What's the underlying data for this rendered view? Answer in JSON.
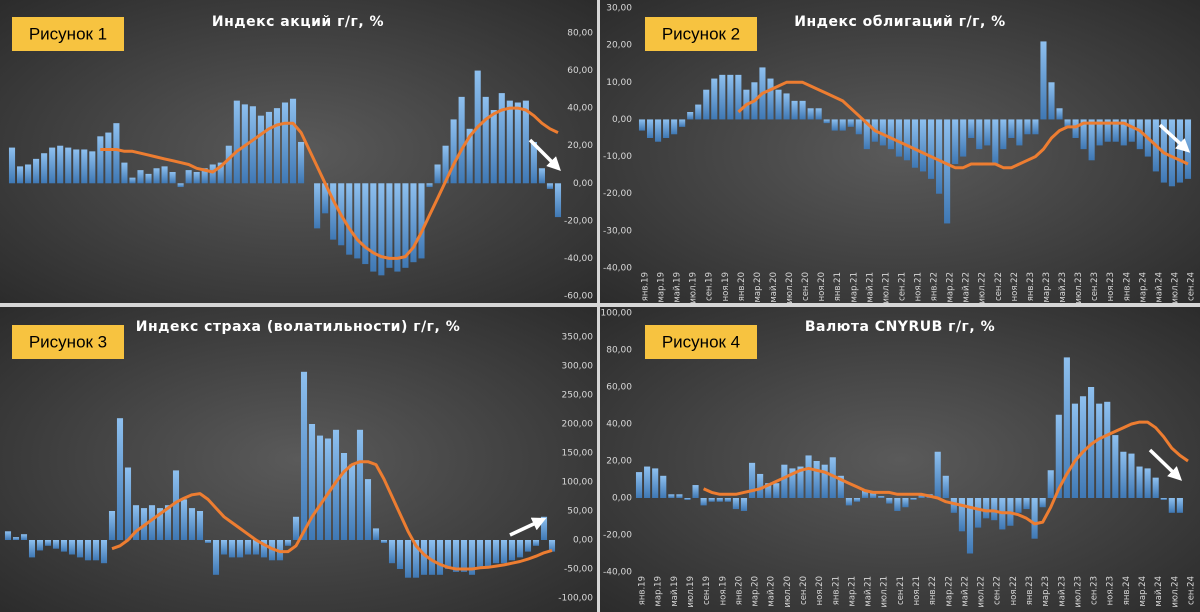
{
  "chart_data": [
    {
      "type": "bar",
      "label": "Рисунок 1",
      "title": "Индекс акций г/г, %",
      "ylim": [
        -60,
        80
      ],
      "yticks": [
        {
          "value": 80,
          "label": "80,00"
        },
        {
          "value": 60,
          "label": "60,00"
        },
        {
          "value": 40,
          "label": "40,00"
        },
        {
          "value": 20,
          "label": "20,00"
        },
        {
          "value": 0,
          "label": "0,00"
        },
        {
          "value": -20,
          "label": "-20,00"
        },
        {
          "value": -40,
          "label": "-40,00"
        },
        {
          "value": -60,
          "label": "-60,00"
        }
      ],
      "grid": false,
      "series": [
        {
          "type": "bar",
          "color": "#5b9bd5",
          "values": [
            19,
            9,
            10,
            13,
            16,
            19,
            20,
            19,
            18,
            18,
            17,
            25,
            27,
            32,
            11,
            3,
            7,
            5,
            8,
            9,
            6,
            -2,
            7,
            6,
            8,
            10,
            11,
            20,
            44,
            42,
            41,
            36,
            38,
            40,
            43,
            45,
            22,
            0,
            -24,
            -16,
            -30,
            -33,
            -38,
            -40,
            -43,
            -47,
            -49,
            -45,
            -47,
            -45,
            -42,
            -40,
            -2,
            10,
            20,
            34,
            46,
            29,
            60,
            46,
            39,
            48,
            44,
            43,
            44,
            22,
            8,
            -3,
            -18
          ]
        },
        {
          "type": "line",
          "color": "#ed7d31",
          "values": [
            null,
            null,
            null,
            null,
            null,
            null,
            null,
            null,
            null,
            null,
            null,
            18,
            18,
            18,
            17,
            17,
            16,
            15,
            14,
            13,
            12,
            11,
            10,
            8,
            7,
            6,
            9,
            13,
            17,
            20,
            23,
            26,
            29,
            31,
            32,
            32,
            27,
            18,
            9,
            0,
            -9,
            -17,
            -24,
            -30,
            -34,
            -37,
            -39,
            -40,
            -40,
            -39,
            -34,
            -26,
            -17,
            -8,
            1,
            10,
            18,
            25,
            30,
            34,
            37,
            39,
            40,
            40,
            39,
            36,
            32,
            29,
            27
          ]
        }
      ]
    },
    {
      "type": "bar",
      "label": "Рисунок 2",
      "title": "Индекс облигаций г/г, %",
      "categories": [
        "янв.19",
        null,
        "мар.19",
        null,
        "май.19",
        null,
        "июл.19",
        null,
        "сен.19",
        null,
        "ноя.19",
        null,
        "янв.20",
        null,
        "мар.20",
        null,
        "май.20",
        null,
        "июл.20",
        null,
        "сен.20",
        null,
        "ноя.20",
        null,
        "янв.21",
        null,
        "мар.21",
        null,
        "май.21",
        null,
        "июл.21",
        null,
        "сен.21",
        null,
        "ноя.21",
        null,
        "янв.22",
        null,
        "мар.22",
        null,
        "май.22",
        null,
        "июл.22",
        null,
        "сен.22",
        null,
        "ноя.22",
        null,
        "янв.23",
        null,
        "мар.23",
        null,
        "май.23",
        null,
        "июл.23",
        null,
        "сен.23",
        null,
        "ноя.23",
        null,
        "янв.24",
        null,
        "мар.24",
        null,
        "май.24",
        null,
        "июл.24",
        null,
        "сен.24"
      ],
      "ylim": [
        -40,
        30
      ],
      "yticks": [
        {
          "value": 30,
          "label": "30,00"
        },
        {
          "value": 20,
          "label": "20,00"
        },
        {
          "value": 10,
          "label": "10,00"
        },
        {
          "value": 0,
          "label": "0,00"
        },
        {
          "value": -10,
          "label": "-10,00"
        },
        {
          "value": -20,
          "label": "-20,00"
        },
        {
          "value": -30,
          "label": "-30,00"
        },
        {
          "value": -40,
          "label": "-40,00"
        }
      ],
      "grid": false,
      "series": [
        {
          "type": "bar",
          "color": "#5b9bd5",
          "values": [
            -3,
            -5,
            -6,
            -5,
            -4,
            -2,
            2,
            4,
            8,
            11,
            12,
            12,
            12,
            8,
            10,
            14,
            11,
            8,
            7,
            5,
            5,
            3,
            3,
            -1,
            -3,
            -3,
            -2,
            -4,
            -8,
            -6,
            -7,
            -8,
            -10,
            -11,
            -13,
            -14,
            -16,
            -20,
            -28,
            -12,
            -10,
            -5,
            -8,
            -7,
            -12,
            -8,
            -5,
            -7,
            -4,
            -4,
            21,
            10,
            3,
            -2,
            -5,
            -8,
            -11,
            -7,
            -6,
            -6,
            -7,
            -6,
            -8,
            -10,
            -14,
            -17,
            -18,
            -17,
            -16
          ]
        },
        {
          "type": "line",
          "color": "#ed7d31",
          "values": [
            null,
            null,
            null,
            null,
            null,
            null,
            null,
            null,
            null,
            null,
            null,
            null,
            2,
            4,
            5,
            7,
            8,
            9,
            10,
            10,
            10,
            9,
            8,
            7,
            6,
            5,
            3,
            1,
            -1,
            -3,
            -4,
            -5,
            -6,
            -7,
            -8,
            -9,
            -10,
            -11,
            -12,
            -13,
            -13,
            -12,
            -12,
            -12,
            -12,
            -13,
            -13,
            -12,
            -11,
            -10,
            -8,
            -5,
            -3,
            -2,
            -2,
            -1,
            -1,
            -1,
            -1,
            -1,
            -1,
            -2,
            -3,
            -5,
            -7,
            -9,
            -10,
            -11,
            -12
          ]
        }
      ]
    },
    {
      "type": "bar",
      "label": "Рисунок 3",
      "title": "Индекс страха (волатильности) г/г, %",
      "ylim": [
        -100,
        350
      ],
      "yticks": [
        {
          "value": 350,
          "label": "350,00"
        },
        {
          "value": 300,
          "label": "300,00"
        },
        {
          "value": 250,
          "label": "250,00"
        },
        {
          "value": 200,
          "label": "200,00"
        },
        {
          "value": 150,
          "label": "150,00"
        },
        {
          "value": 100,
          "label": "100,00"
        },
        {
          "value": 50,
          "label": "50,00"
        },
        {
          "value": 0,
          "label": "0,00"
        },
        {
          "value": -50,
          "label": "-50,00"
        },
        {
          "value": -100,
          "label": "-100,00"
        }
      ],
      "grid": false,
      "series": [
        {
          "type": "bar",
          "color": "#5b9bd5",
          "values": [
            15,
            5,
            10,
            -30,
            -18,
            -10,
            -15,
            -20,
            -25,
            -30,
            -35,
            -35,
            -40,
            50,
            210,
            125,
            60,
            55,
            60,
            55,
            60,
            120,
            70,
            55,
            50,
            -5,
            -60,
            -25,
            -30,
            -30,
            -25,
            -25,
            -30,
            -35,
            -35,
            -10,
            40,
            290,
            200,
            180,
            175,
            190,
            150,
            130,
            190,
            105,
            20,
            -5,
            -40,
            -50,
            -65,
            -65,
            -60,
            -60,
            -60,
            -50,
            -55,
            -55,
            -60,
            -50,
            -45,
            -40,
            -40,
            -35,
            -30,
            -20,
            -10,
            40,
            -20
          ]
        },
        {
          "type": "line",
          "color": "#ed7d31",
          "values": [
            null,
            null,
            null,
            null,
            null,
            null,
            null,
            null,
            null,
            null,
            null,
            null,
            null,
            -15,
            -10,
            0,
            15,
            25,
            35,
            45,
            55,
            65,
            72,
            78,
            80,
            70,
            55,
            40,
            30,
            20,
            10,
            0,
            -8,
            -15,
            -20,
            -20,
            -10,
            15,
            40,
            60,
            80,
            100,
            118,
            130,
            135,
            135,
            130,
            105,
            75,
            45,
            15,
            -10,
            -25,
            -35,
            -42,
            -47,
            -50,
            -50,
            -50,
            -48,
            -47,
            -45,
            -43,
            -40,
            -37,
            -33,
            -28,
            -22,
            -18
          ]
        }
      ]
    },
    {
      "type": "bar",
      "label": "Рисунок 4",
      "title": "Валюта CNYRUB г/г, %",
      "categories": [
        "янв.19",
        null,
        "мар.19",
        null,
        "май.19",
        null,
        "июл.19",
        null,
        "сен.19",
        null,
        "ноя.19",
        null,
        "янв.20",
        null,
        "мар.20",
        null,
        "май.20",
        null,
        "июл.20",
        null,
        "сен.20",
        null,
        "ноя.20",
        null,
        "янв.21",
        null,
        "мар.21",
        null,
        "май.21",
        null,
        "июл.21",
        null,
        "сен.21",
        null,
        "ноя.21",
        null,
        "янв.22",
        null,
        "мар.22",
        null,
        "май.22",
        null,
        "июл.22",
        null,
        "сен.22",
        null,
        "ноя.22",
        null,
        "янв.23",
        null,
        "мар.23",
        null,
        "май.23",
        null,
        "июл.23",
        null,
        "сен.23",
        null,
        "ноя.23",
        null,
        "янв.24",
        null,
        "мар.24",
        null,
        "май.24",
        null,
        "июл.24",
        null,
        "сен.24"
      ],
      "ylim": [
        -40,
        100
      ],
      "yticks": [
        {
          "value": 100,
          "label": "100,00"
        },
        {
          "value": 80,
          "label": "80,00"
        },
        {
          "value": 60,
          "label": "60,00"
        },
        {
          "value": 40,
          "label": "40,00"
        },
        {
          "value": 20,
          "label": "20,00"
        },
        {
          "value": 0,
          "label": "0,00"
        },
        {
          "value": -20,
          "label": "-20,00"
        },
        {
          "value": -40,
          "label": "-40,00"
        }
      ],
      "grid": false,
      "series": [
        {
          "type": "bar",
          "color": "#5b9bd5",
          "values": [
            14,
            17,
            16,
            12,
            2,
            2,
            -1,
            7,
            -4,
            -2,
            -2,
            -2,
            -6,
            -7,
            19,
            13,
            8,
            8,
            18,
            16,
            17,
            23,
            20,
            18,
            22,
            12,
            -4,
            -2,
            4,
            3,
            1,
            -3,
            -7,
            -5,
            -1,
            2,
            2,
            25,
            12,
            -8,
            -18,
            -30,
            -16,
            -11,
            -12,
            -17,
            -15,
            -8,
            -6,
            -22,
            -5,
            15,
            45,
            76,
            51,
            55,
            60,
            51,
            52,
            34,
            25,
            24,
            17,
            16,
            11,
            -1,
            -8,
            -8,
            0
          ]
        },
        {
          "type": "line",
          "color": "#ed7d31",
          "values": [
            null,
            null,
            null,
            null,
            null,
            null,
            null,
            null,
            5,
            3,
            2,
            2,
            2,
            3,
            4,
            5,
            7,
            9,
            11,
            13,
            15,
            16,
            15,
            14,
            12,
            10,
            8,
            6,
            4,
            3,
            3,
            3,
            2,
            2,
            2,
            2,
            1,
            0,
            -2,
            -3,
            -4,
            -5,
            -6,
            -7,
            -7,
            -8,
            -8,
            -9,
            -11,
            -14,
            -13,
            -5,
            5,
            13,
            20,
            25,
            29,
            32,
            34,
            36,
            38,
            40,
            41,
            41,
            38,
            33,
            27,
            23,
            20
          ]
        }
      ]
    }
  ]
}
